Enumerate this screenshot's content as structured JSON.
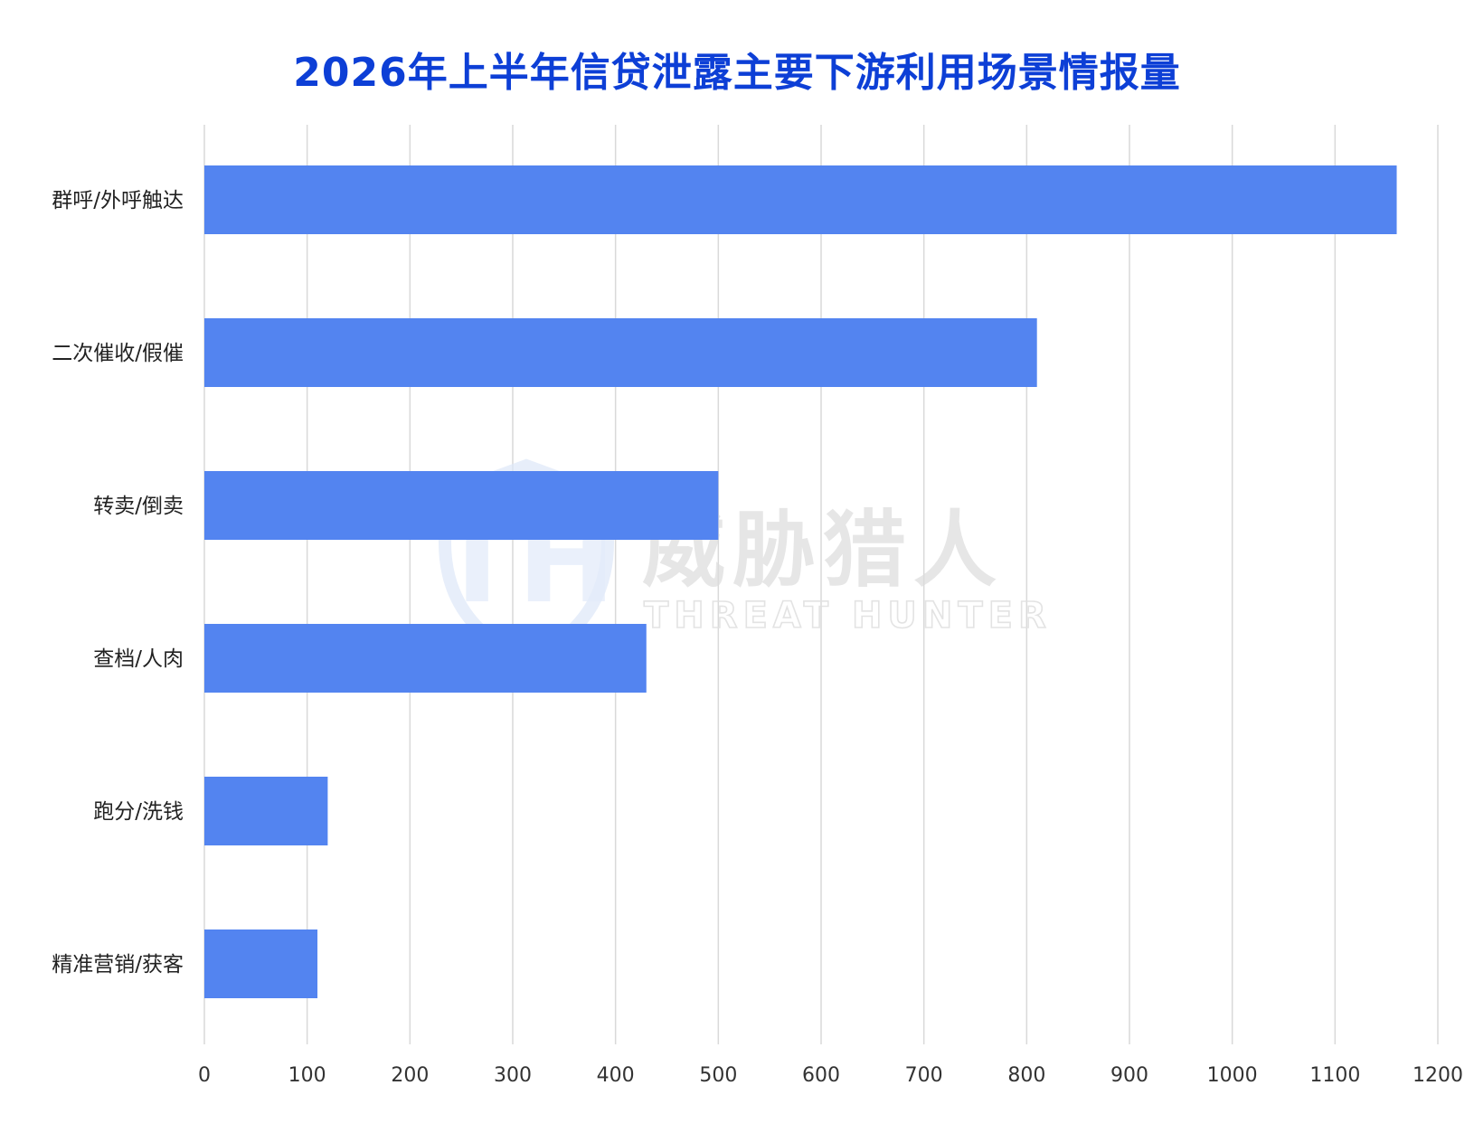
{
  "chart_data": {
    "type": "bar",
    "orientation": "horizontal",
    "title": "2026年上半年信贷泄露主要下游利用场景情报量",
    "categories": [
      "群呼/外呼触达",
      "二次催收/假催",
      "转卖/倒卖",
      "查档/人肉",
      "跑分/洗钱",
      "精准营销/获客"
    ],
    "values": [
      1160,
      810,
      500,
      430,
      120,
      110
    ],
    "xlim": [
      0,
      1200
    ],
    "xticks": [
      0,
      100,
      200,
      300,
      400,
      500,
      600,
      700,
      800,
      900,
      1000,
      1100,
      1200
    ],
    "grid": "vertical",
    "legend": "none",
    "bar_color": "#5384f0",
    "title_color": "#0d3fd6"
  },
  "watermark": {
    "name_cn": "威胁猎人",
    "name_en": "THREAT HUNTER",
    "logo_letter": "TH",
    "icon": "shield-icon"
  }
}
